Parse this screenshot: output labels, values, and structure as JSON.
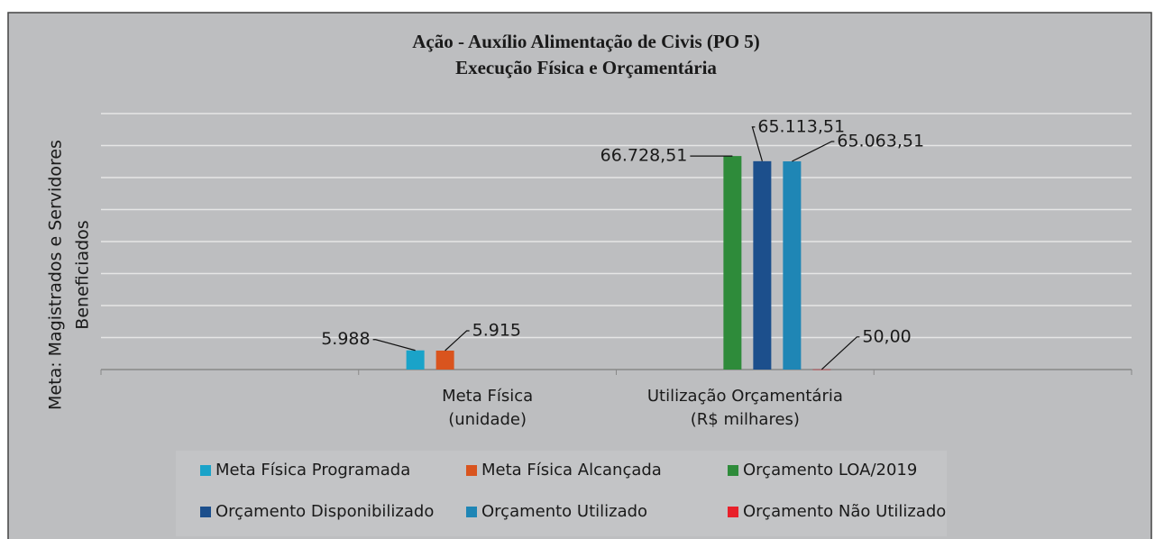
{
  "chart_data": {
    "type": "bar",
    "title": [
      "Ação - Auxílio Alimentação de Civis (PO 5)",
      "Execução Física e Orçamentária"
    ],
    "ylabel": [
      "Meta: Magistrados e Servidores",
      "Beneficiados"
    ],
    "categories": [
      null,
      [
        "Meta Física",
        "(unidade)"
      ],
      [
        "Utilização Orçamentária",
        "(R$ milhares)"
      ],
      null
    ],
    "series": [
      {
        "name": "Meta Física Programada",
        "color": "#1aa3c9",
        "values": [
          null,
          5988,
          null,
          null
        ],
        "value_labels": [
          null,
          "5.988",
          null,
          null
        ]
      },
      {
        "name": "Meta Física Alcançada",
        "color": "#d9541e",
        "values": [
          null,
          5915,
          null,
          null
        ],
        "value_labels": [
          null,
          "5.915",
          null,
          null
        ]
      },
      {
        "name": "Orçamento LOA/2019",
        "color": "#2e8b3a",
        "values": [
          null,
          null,
          66728.51,
          null
        ],
        "value_labels": [
          null,
          null,
          "66.728,51",
          null
        ]
      },
      {
        "name": "Orçamento Disponibilizado",
        "color": "#1c4f8c",
        "values": [
          null,
          null,
          65113.51,
          null
        ],
        "value_labels": [
          null,
          null,
          "65.113,51",
          null
        ]
      },
      {
        "name": "Orçamento Utilizado",
        "color": "#1f86b5",
        "values": [
          null,
          null,
          65063.51,
          null
        ],
        "value_labels": [
          null,
          null,
          "65.063,51",
          null
        ]
      },
      {
        "name": "Orçamento Não Utilizado",
        "color": "#e8202a",
        "values": [
          null,
          null,
          50,
          null
        ],
        "value_labels": [
          null,
          null,
          "50,00",
          null
        ]
      }
    ],
    "ylim": [
      0,
      80000
    ],
    "yticks": [
      0,
      10000,
      20000,
      30000,
      40000,
      50000,
      60000,
      70000,
      80000
    ],
    "grid": true,
    "legend": "bottom"
  }
}
